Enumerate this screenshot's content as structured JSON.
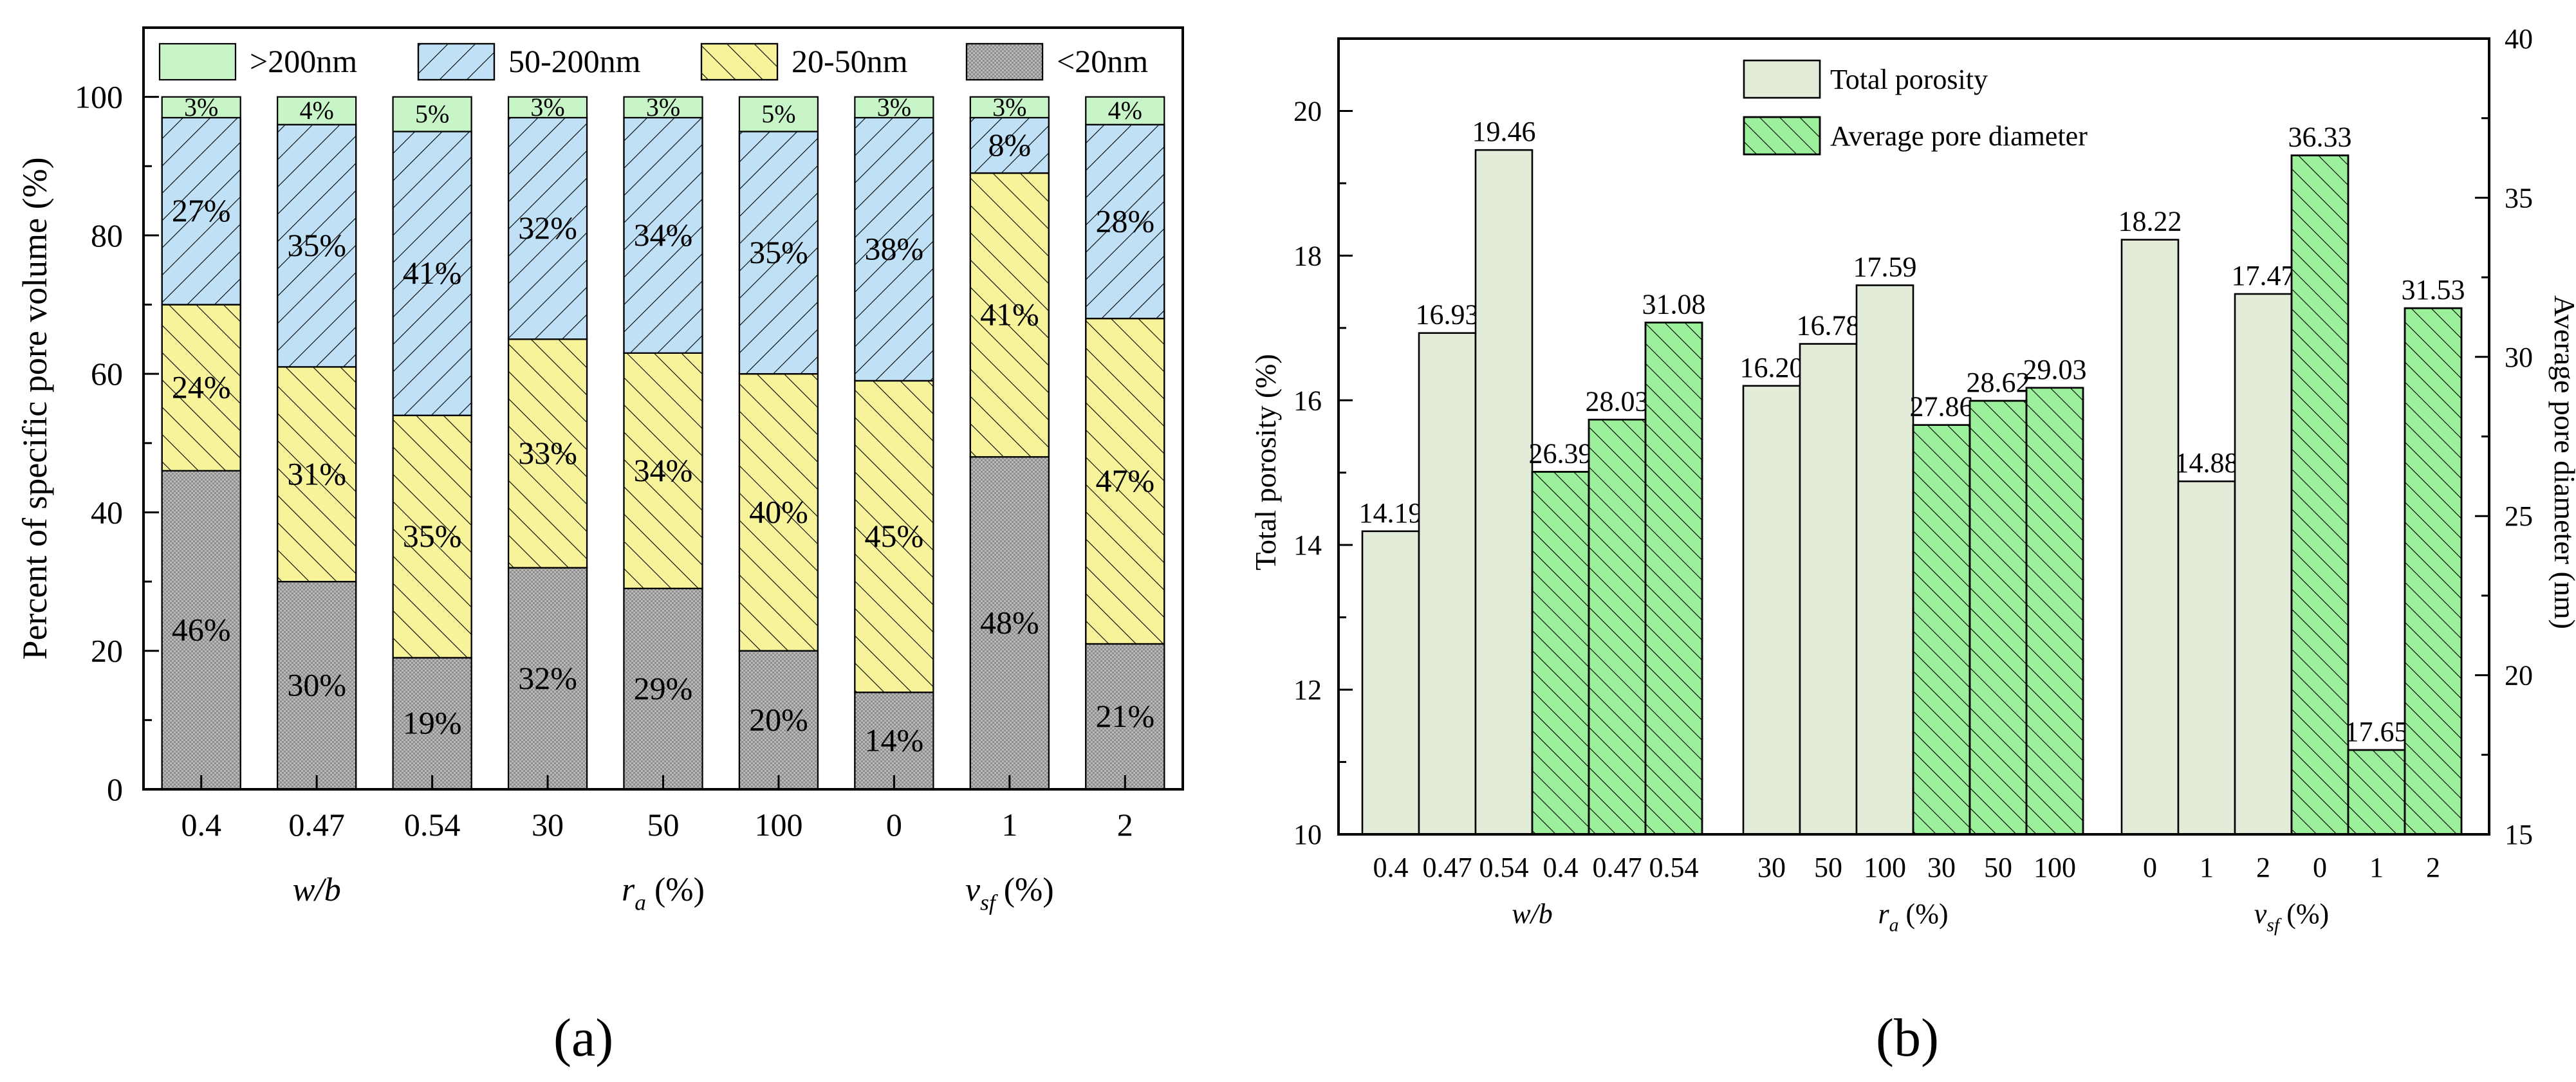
{
  "captions": {
    "a": "(a)",
    "b": "(b)"
  },
  "colors": {
    "gt200": "#c8f5c8",
    "nm50_200": "#bfe0f5",
    "nm20_50": "#f7f39a",
    "lt20": "#b4b4b4",
    "total_porosity": "#e3ecd9",
    "avg_pore": "#9cf09c"
  },
  "chart_data": [
    {
      "type": "bar",
      "stacked": true,
      "panel": "a",
      "ylabel": "Percent of specific pore volume (%)",
      "ylim": [
        0,
        110
      ],
      "yticks": [
        0,
        20,
        40,
        60,
        80,
        100
      ],
      "legend": [
        "<20nm",
        "20-50nm",
        "50-200nm",
        ">200nm"
      ],
      "categories": [
        "0.4",
        "0.47",
        "0.54",
        "30",
        "50",
        "100",
        "0",
        "1",
        "2"
      ],
      "groups": [
        {
          "label_italic": "w/b",
          "label_var": "",
          "label_sub": "",
          "label_tail": ""
        },
        {
          "label_italic": "",
          "label_var": "r",
          "label_sub": "a",
          "label_tail": " (%)"
        },
        {
          "label_italic": "",
          "label_var": "v",
          "label_sub": "sf",
          "label_tail": " (%)"
        }
      ],
      "series": [
        {
          "name": "<20nm",
          "values": [
            46,
            30,
            19,
            32,
            29,
            20,
            14,
            48,
            21
          ],
          "labels": [
            "46%",
            "30%",
            "19%",
            "32%",
            "29%",
            "20%",
            "14%",
            "48%",
            "21%"
          ]
        },
        {
          "name": "20-50nm",
          "values": [
            24,
            31,
            35,
            33,
            34,
            40,
            45,
            41,
            47
          ],
          "labels": [
            "24%",
            "31%",
            "35%",
            "33%",
            "34%",
            "40%",
            "45%",
            "41%",
            "47%"
          ]
        },
        {
          "name": "50-200nm",
          "values": [
            27,
            35,
            41,
            32,
            34,
            35,
            38,
            8,
            28
          ],
          "labels": [
            "27%",
            "35%",
            "41%",
            "32%",
            "34%",
            "35%",
            "38%",
            "8%",
            "28%"
          ]
        },
        {
          "name": ">200nm",
          "values": [
            3,
            4,
            5,
            3,
            3,
            5,
            3,
            3,
            4
          ],
          "labels": [
            "3%",
            "4%",
            "5%",
            "3%",
            "3%",
            "5%",
            "3%",
            "3%",
            "4%"
          ]
        }
      ]
    },
    {
      "type": "bar",
      "panel": "b",
      "ylabel_left": "Total porosity (%)",
      "ylabel_right": "Average pore diameter (nm)",
      "ylim_left": [
        10,
        21
      ],
      "yticks_left": [
        10,
        12,
        14,
        16,
        18,
        20
      ],
      "ylim_right": [
        15,
        40
      ],
      "yticks_right": [
        15,
        20,
        25,
        30,
        35,
        40
      ],
      "legend": [
        "Total porosity",
        "Average pore diameter"
      ],
      "groups": [
        {
          "label_italic": "w/b",
          "label_var": "",
          "label_sub": "",
          "label_tail": "",
          "categories": [
            "0.4",
            "0.47",
            "0.54"
          ],
          "total_porosity": [
            14.19,
            16.93,
            19.46
          ],
          "total_porosity_labels": [
            "14.19",
            "16.93",
            "19.46"
          ],
          "avg_pore_diameter": [
            26.39,
            28.03,
            31.08
          ],
          "avg_pore_diameter_labels": [
            "26.39",
            "28.03",
            "31.08"
          ]
        },
        {
          "label_italic": "",
          "label_var": "r",
          "label_sub": "a",
          "label_tail": " (%)",
          "categories": [
            "30",
            "50",
            "100"
          ],
          "total_porosity": [
            16.2,
            16.78,
            17.59
          ],
          "total_porosity_labels": [
            "16.20",
            "16.78",
            "17.59"
          ],
          "avg_pore_diameter": [
            27.86,
            28.62,
            29.03
          ],
          "avg_pore_diameter_labels": [
            "27.86",
            "28.62",
            "29.03"
          ]
        },
        {
          "label_italic": "",
          "label_var": "v",
          "label_sub": "sf",
          "label_tail": " (%)",
          "categories": [
            "0",
            "1",
            "2"
          ],
          "total_porosity": [
            18.22,
            14.88,
            17.47
          ],
          "total_porosity_labels": [
            "18.22",
            "14.88",
            "17.47"
          ],
          "avg_pore_diameter": [
            36.33,
            17.65,
            31.53
          ],
          "avg_pore_diameter_labels": [
            "36.33",
            "17.65",
            "31.53"
          ]
        }
      ]
    }
  ]
}
